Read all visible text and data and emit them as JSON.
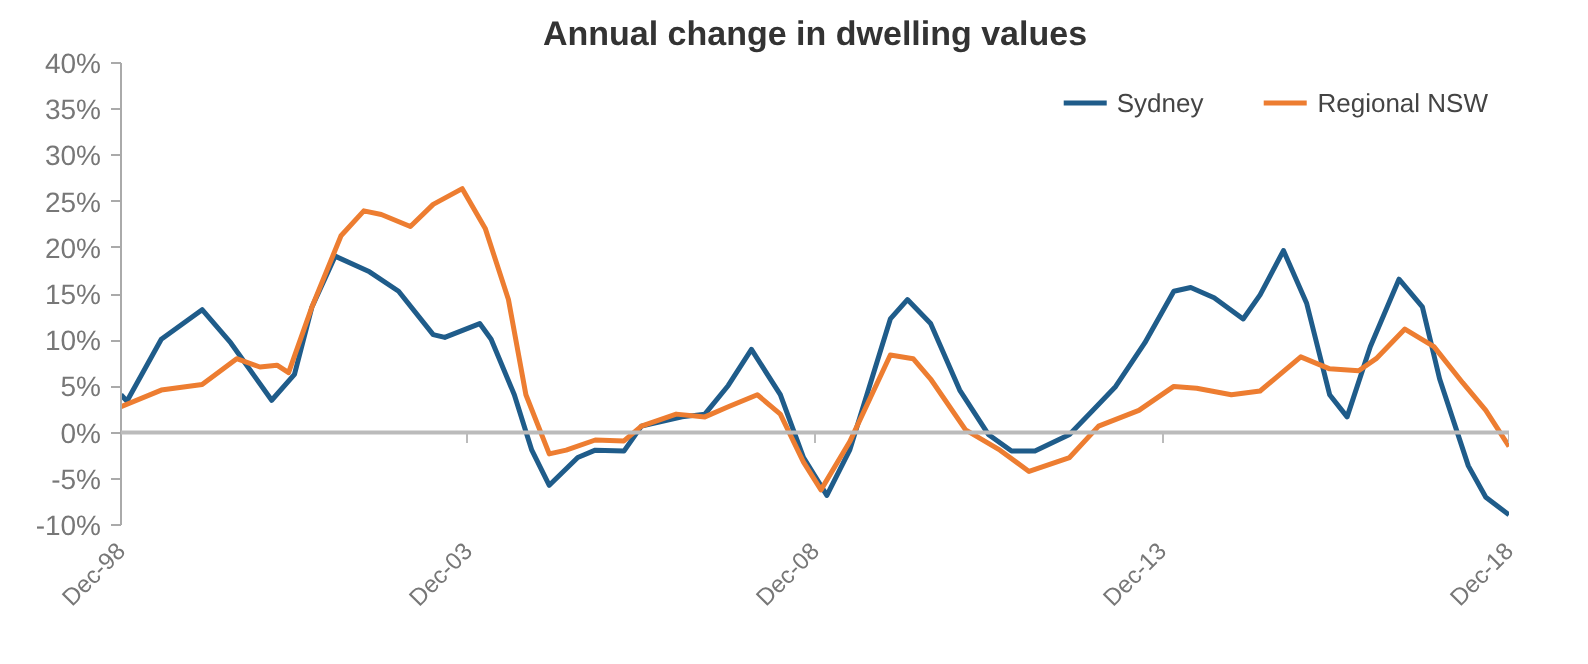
{
  "chart_data": {
    "type": "line",
    "title": "Annual change in dwelling values",
    "x": [
      "1998-12",
      "1999-01",
      "1999-07",
      "2000-02",
      "2000-07",
      "2001-02",
      "2001-06",
      "2001-09",
      "2002-01",
      "2002-07",
      "2002-12",
      "2003-06",
      "2003-08",
      "2004-02",
      "2004-04",
      "2004-08",
      "2004-11",
      "2005-02",
      "2005-07",
      "2005-10",
      "2006-03",
      "2006-06",
      "2007-01",
      "2007-05",
      "2007-09",
      "2008-01",
      "2008-06",
      "2008-10",
      "2009-02",
      "2009-06",
      "2010-01",
      "2010-04",
      "2010-08",
      "2011-01",
      "2011-06",
      "2011-10",
      "2012-02",
      "2012-08",
      "2012-12",
      "2013-04",
      "2013-09",
      "2014-02",
      "2014-05",
      "2014-09",
      "2015-02",
      "2015-05",
      "2015-09",
      "2016-01",
      "2016-05",
      "2016-08",
      "2016-12",
      "2017-05",
      "2017-09",
      "2017-12",
      "2018-05",
      "2018-08",
      "2018-12"
    ],
    "series": [
      {
        "name": "Sydney",
        "color": "#1f5c8a",
        "values": [
          4.1,
          3.4,
          10.1,
          13.3,
          9.7,
          3.5,
          6.3,
          13.6,
          19.1,
          17.4,
          15.3,
          10.6,
          10.3,
          11.8,
          10.1,
          4.1,
          -1.9,
          -5.7,
          -2.7,
          -1.9,
          -2.0,
          0.7,
          1.7,
          2.0,
          5.1,
          9.0,
          4.1,
          -2.7,
          -6.8,
          -1.9,
          12.3,
          14.4,
          11.8,
          4.6,
          -0.2,
          -2.0,
          -2.0,
          -0.2,
          2.4,
          5.0,
          9.7,
          15.3,
          15.7,
          14.6,
          12.3,
          14.9,
          19.7,
          14.0,
          4.1,
          1.7,
          9.3,
          16.6,
          13.6,
          5.8,
          -3.6,
          -7.0,
          -8.9
        ]
      },
      {
        "name": "Regional NSW",
        "color": "#ed7d31",
        "x": [
          "1998-12",
          "1999-07",
          "2000-02",
          "2000-08",
          "2000-12",
          "2001-03",
          "2001-05",
          "2001-09",
          "2002-02",
          "2002-06",
          "2002-09",
          "2003-02",
          "2003-06",
          "2003-11",
          "2004-03",
          "2004-07",
          "2004-10",
          "2005-02",
          "2005-05",
          "2005-10",
          "2006-03",
          "2006-06",
          "2006-12",
          "2007-05",
          "2007-09",
          "2008-02",
          "2008-06",
          "2008-10",
          "2009-01",
          "2009-06",
          "2010-01",
          "2010-05",
          "2010-08",
          "2011-02",
          "2011-08",
          "2012-01",
          "2012-08",
          "2013-01",
          "2013-08",
          "2014-02",
          "2014-06",
          "2014-12",
          "2015-05",
          "2015-12",
          "2016-05",
          "2016-10",
          "2017-01",
          "2017-06",
          "2017-11",
          "2018-04",
          "2018-08",
          "2018-12"
        ],
        "values": [
          2.8,
          4.6,
          5.2,
          8.0,
          7.1,
          7.3,
          6.5,
          13.6,
          21.3,
          24.0,
          23.6,
          22.3,
          24.7,
          26.4,
          22.1,
          14.4,
          4.1,
          -2.3,
          -1.9,
          -0.8,
          -0.9,
          0.7,
          2.0,
          1.7,
          2.8,
          4.1,
          2.0,
          -3.2,
          -6.2,
          -1.0,
          8.4,
          8.0,
          5.8,
          0.3,
          -1.9,
          -4.2,
          -2.7,
          0.7,
          2.4,
          5.0,
          4.8,
          4.1,
          4.5,
          8.2,
          6.9,
          6.7,
          8.0,
          11.2,
          9.3,
          5.4,
          2.4,
          -1.5
        ]
      }
    ],
    "xlim": [
      "1998-12",
      "2018-12"
    ],
    "xticks": [
      {
        "value": "1998-12",
        "label": "Dec-98"
      },
      {
        "value": "2003-12",
        "label": "Dec-03"
      },
      {
        "value": "2008-12",
        "label": "Dec-08"
      },
      {
        "value": "2013-12",
        "label": "Dec-13"
      },
      {
        "value": "2018-12",
        "label": "Dec-18"
      }
    ],
    "ylim": [
      -10,
      40
    ],
    "yticks": [
      {
        "value": -10,
        "label": "-10%"
      },
      {
        "value": -5,
        "label": "-5%"
      },
      {
        "value": 0,
        "label": "0%"
      },
      {
        "value": 5,
        "label": "5%"
      },
      {
        "value": 10,
        "label": "10%"
      },
      {
        "value": 15,
        "label": "15%"
      },
      {
        "value": 20,
        "label": "20%"
      },
      {
        "value": 25,
        "label": "25%"
      },
      {
        "value": 30,
        "label": "30%"
      },
      {
        "value": 35,
        "label": "35%"
      },
      {
        "value": 40,
        "label": "40%"
      }
    ],
    "ref_lines": [
      {
        "axis": "y",
        "value": 0,
        "color": "#bbbbbb"
      }
    ],
    "grid": false,
    "legend": "top right",
    "marker": "none",
    "line_style": "solid"
  }
}
